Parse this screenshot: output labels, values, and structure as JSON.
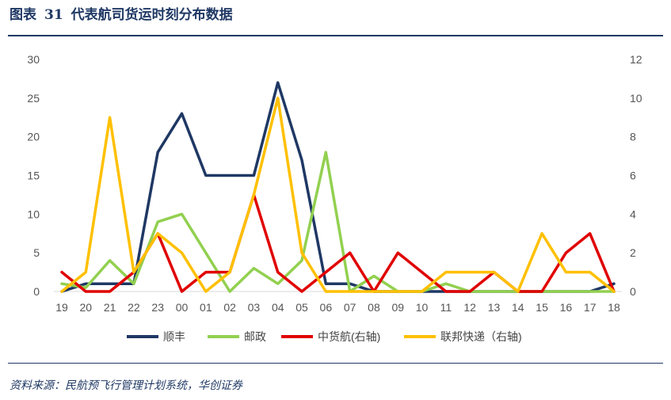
{
  "header": {
    "prefix": "图表",
    "number": "31",
    "text": "代表航司货运时刻分布数据"
  },
  "footer": {
    "source": "资料来源：民航预飞行管理计划系统，华创证券"
  },
  "chart_data": {
    "type": "line",
    "categories": [
      "19",
      "20",
      "21",
      "22",
      "23",
      "00",
      "01",
      "02",
      "03",
      "04",
      "05",
      "06",
      "07",
      "08",
      "09",
      "10",
      "11",
      "12",
      "13",
      "14",
      "15",
      "16",
      "17",
      "18"
    ],
    "y_left": {
      "ylim": [
        0,
        30
      ],
      "ticks": [
        0,
        5,
        10,
        15,
        20,
        25,
        30
      ]
    },
    "y_right": {
      "ylim": [
        0,
        12
      ],
      "ticks": [
        0,
        2,
        4,
        6,
        8,
        10,
        12
      ]
    },
    "grid": false,
    "legend_position": "bottom",
    "series": [
      {
        "name": "顺丰",
        "axis": "left",
        "color": "#1f3864",
        "values": [
          0,
          1,
          1,
          1,
          18,
          23,
          15,
          15,
          15,
          27,
          17,
          1,
          1,
          0,
          0,
          0,
          0,
          0,
          0,
          0,
          0,
          0,
          0,
          1
        ]
      },
      {
        "name": "邮政",
        "axis": "left",
        "color": "#92d050",
        "values": [
          1,
          0.5,
          4,
          1,
          9,
          10,
          5,
          0,
          3,
          1,
          4,
          18,
          0,
          2,
          0,
          0,
          1,
          0,
          0,
          0,
          0,
          0,
          0,
          0
        ]
      },
      {
        "name": "中货航(右轴)",
        "axis": "right",
        "color": "#e00000",
        "values": [
          1,
          0,
          0,
          1,
          3,
          0,
          1,
          1,
          5,
          1,
          0,
          1,
          2,
          0,
          2,
          1,
          0,
          0,
          1,
          0,
          0,
          2,
          3,
          0
        ]
      },
      {
        "name": "联邦快递（右轴)",
        "axis": "right",
        "color": "#ffc000",
        "values": [
          0,
          1,
          9,
          1,
          3,
          2,
          0,
          1,
          5,
          10,
          2,
          0,
          0,
          0,
          0,
          0,
          1,
          1,
          1,
          0,
          3,
          1,
          1,
          0
        ]
      }
    ]
  }
}
